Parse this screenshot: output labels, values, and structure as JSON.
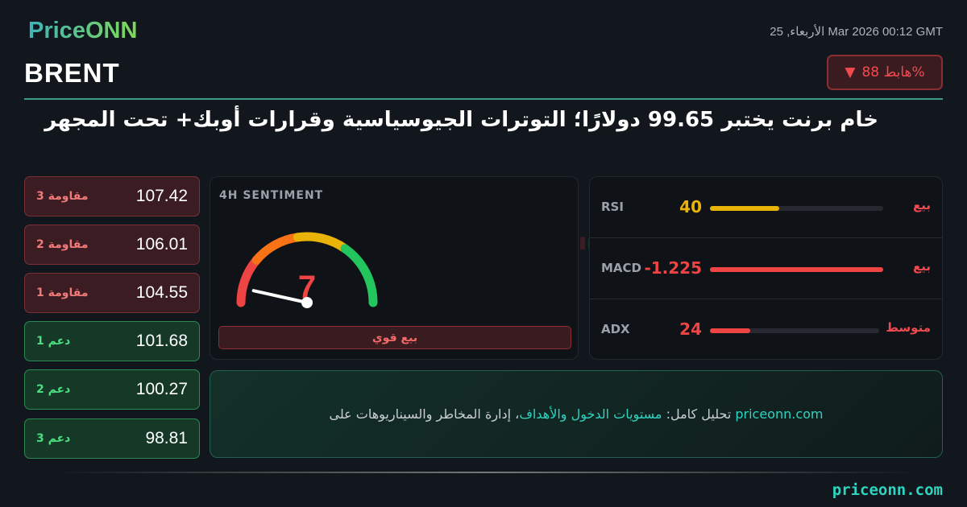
{
  "brand": {
    "logo": "PriceONN",
    "footer": "priceonn.com"
  },
  "header": {
    "date": "الأربعاء, 25 Mar 2026 00:12 GMT",
    "ticker": "BRENT",
    "badge": {
      "text": "%هابط 88",
      "icon": "triangle-down-icon",
      "color": "#f04a4f"
    },
    "title": "خام برنت يختبر 99.65 دولارًا؛ التوترات الجيوسياسية وقرارات أوبك+ تحت المجهر"
  },
  "levels": [
    {
      "label": "مقاومة 3",
      "value": "107.42",
      "type": "resistance"
    },
    {
      "label": "مقاومة 2",
      "value": "106.01",
      "type": "resistance"
    },
    {
      "label": "مقاومة 1",
      "value": "104.55",
      "type": "resistance"
    },
    {
      "label": "دعم 1",
      "value": "101.68",
      "type": "support"
    },
    {
      "label": "دعم 2",
      "value": "100.27",
      "type": "support"
    },
    {
      "label": "دعم 3",
      "value": "98.81",
      "type": "support"
    }
  ],
  "sentiment": {
    "label": "4H SENTIMENT",
    "value": "7",
    "score_percent": 7,
    "verdict": "بيع قوي"
  },
  "indicators": [
    {
      "name": "RSI",
      "value": "40",
      "signal": "بيع",
      "fill_percent": 40,
      "color": "#eab308"
    },
    {
      "name": "MACD",
      "value": "-1.225",
      "signal": "بيع",
      "fill_percent": 100,
      "color": "#ef4444"
    },
    {
      "name": "ADX",
      "value": "24",
      "signal": "متوسط",
      "fill_percent": 24,
      "color": "#ef4444"
    }
  ],
  "cta": {
    "site": "priceonn.com",
    "part1": " تحليل كامل: ",
    "highlight": "مستويات الدخول والأهداف",
    "part2": "، إدارة المخاطر والسيناريوهات على"
  }
}
